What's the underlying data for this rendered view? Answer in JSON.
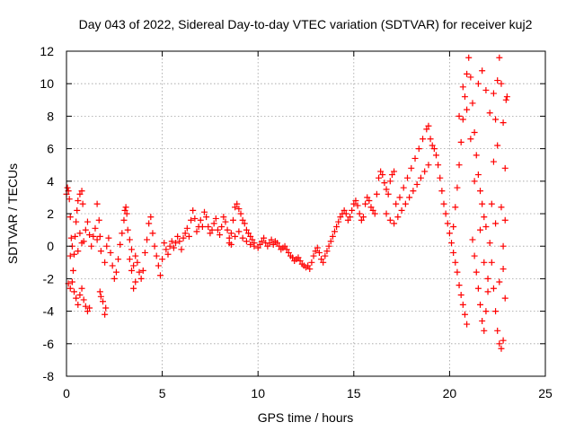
{
  "chart_data": {
    "type": "scatter",
    "title": "Day 043 of 2022, Sidereal Day-to-day VTEC variation (SDTVAR) for receiver kuj2",
    "xlabel": "GPS time / hours",
    "ylabel": "SDTVAR / TECUs",
    "xlim": [
      0,
      25
    ],
    "ylim": [
      -8,
      12
    ],
    "xticks": [
      0,
      5,
      10,
      15,
      20,
      25
    ],
    "yticks": [
      -8,
      -6,
      -4,
      -2,
      0,
      2,
      4,
      6,
      8,
      10,
      12
    ],
    "grid": true,
    "marker": "+",
    "series_color": "#ff0000",
    "series": [
      {
        "name": "SDTVAR",
        "points": [
          [
            0.0,
            3.2
          ],
          [
            0.05,
            3.6
          ],
          [
            0.1,
            3.4
          ],
          [
            0.15,
            2.9
          ],
          [
            0.2,
            1.8
          ],
          [
            0.25,
            0.5
          ],
          [
            0.1,
            -2.3
          ],
          [
            0.2,
            -2.6
          ],
          [
            0.3,
            -2.2
          ],
          [
            0.35,
            -1.5
          ],
          [
            0.4,
            -0.5
          ],
          [
            0.45,
            0.6
          ],
          [
            0.5,
            1.5
          ],
          [
            0.55,
            2.2
          ],
          [
            0.6,
            2.8
          ],
          [
            0.7,
            3.2
          ],
          [
            0.8,
            3.4
          ],
          [
            0.85,
            2.6
          ],
          [
            0.4,
            -2.8
          ],
          [
            0.5,
            -3.2
          ],
          [
            0.6,
            -3.6
          ],
          [
            0.7,
            -3.0
          ],
          [
            0.8,
            -2.6
          ],
          [
            0.9,
            -3.3
          ],
          [
            1.0,
            -3.7
          ],
          [
            1.1,
            -4.0
          ],
          [
            1.2,
            -3.8
          ],
          [
            0.9,
            0.3
          ],
          [
            1.0,
            1.0
          ],
          [
            1.1,
            1.5
          ],
          [
            1.2,
            0.7
          ],
          [
            1.3,
            0.0
          ],
          [
            1.4,
            0.6
          ],
          [
            1.5,
            1.1
          ],
          [
            1.6,
            0.4
          ],
          [
            0.6,
            -0.3
          ],
          [
            0.7,
            0.8
          ],
          [
            0.8,
            0.2
          ],
          [
            0.3,
            0.0
          ],
          [
            0.2,
            -0.6
          ],
          [
            1.6,
            2.6
          ],
          [
            1.7,
            1.6
          ],
          [
            1.75,
            0.6
          ],
          [
            1.8,
            -0.3
          ],
          [
            1.75,
            -2.8
          ],
          [
            1.8,
            -3.1
          ],
          [
            1.9,
            -3.4
          ],
          [
            2.0,
            -4.2
          ],
          [
            2.05,
            -3.8
          ],
          [
            2.0,
            -1.0
          ],
          [
            2.1,
            0.0
          ],
          [
            2.2,
            0.5
          ],
          [
            2.3,
            -0.4
          ],
          [
            2.4,
            -1.2
          ],
          [
            2.5,
            -2.0
          ],
          [
            2.6,
            -1.6
          ],
          [
            2.7,
            -0.8
          ],
          [
            2.8,
            0.1
          ],
          [
            2.9,
            0.8
          ],
          [
            3.0,
            1.6
          ],
          [
            3.05,
            2.2
          ],
          [
            3.1,
            2.4
          ],
          [
            3.15,
            2.0
          ],
          [
            3.2,
            1.0
          ],
          [
            3.3,
            -0.8
          ],
          [
            3.4,
            -1.5
          ],
          [
            3.5,
            -1.2
          ],
          [
            3.6,
            -0.6
          ],
          [
            3.7,
            -1.0
          ],
          [
            3.8,
            -1.6
          ],
          [
            3.9,
            -2.0
          ],
          [
            4.0,
            -1.5
          ],
          [
            3.3,
            0.4
          ],
          [
            3.4,
            -0.2
          ],
          [
            3.5,
            -2.6
          ],
          [
            3.6,
            -2.2
          ],
          [
            4.1,
            -0.4
          ],
          [
            4.2,
            0.4
          ],
          [
            4.3,
            1.4
          ],
          [
            4.4,
            1.8
          ],
          [
            4.5,
            0.8
          ],
          [
            4.6,
            0.0
          ],
          [
            4.7,
            -0.6
          ],
          [
            4.8,
            -1.2
          ],
          [
            4.9,
            -1.8
          ],
          [
            5.0,
            -0.8
          ],
          [
            5.1,
            0.2
          ],
          [
            5.2,
            -0.2
          ],
          [
            5.3,
            -0.5
          ],
          [
            5.4,
            0.0
          ],
          [
            5.5,
            0.3
          ],
          [
            5.6,
            -0.1
          ],
          [
            5.7,
            0.2
          ],
          [
            5.8,
            0.6
          ],
          [
            5.9,
            0.3
          ],
          [
            6.0,
            -0.2
          ],
          [
            6.1,
            0.5
          ],
          [
            6.2,
            0.8
          ],
          [
            6.3,
            1.1
          ],
          [
            6.4,
            0.6
          ],
          [
            6.5,
            1.6
          ],
          [
            6.6,
            2.2
          ],
          [
            6.7,
            1.7
          ],
          [
            6.8,
            0.9
          ],
          [
            6.9,
            1.2
          ],
          [
            7.0,
            1.6
          ],
          [
            7.1,
            1.2
          ],
          [
            7.2,
            2.1
          ],
          [
            7.3,
            1.8
          ],
          [
            7.4,
            1.2
          ],
          [
            7.5,
            0.8
          ],
          [
            7.6,
            1.0
          ],
          [
            7.7,
            1.4
          ],
          [
            7.8,
            1.7
          ],
          [
            7.9,
            1.0
          ],
          [
            8.0,
            0.7
          ],
          [
            8.1,
            1.2
          ],
          [
            8.2,
            1.8
          ],
          [
            8.3,
            1.5
          ],
          [
            8.4,
            1.0
          ],
          [
            8.5,
            0.5
          ],
          [
            8.6,
            0.8
          ],
          [
            8.7,
            1.6
          ],
          [
            8.8,
            2.4
          ],
          [
            8.9,
            2.6
          ],
          [
            9.0,
            2.3
          ],
          [
            9.1,
            2.0
          ],
          [
            9.2,
            1.6
          ],
          [
            9.3,
            1.4
          ],
          [
            9.4,
            1.0
          ],
          [
            9.5,
            0.8
          ],
          [
            9.6,
            0.6
          ],
          [
            9.7,
            0.4
          ],
          [
            9.8,
            0.2
          ],
          [
            8.5,
            0.2
          ],
          [
            8.6,
            0.1
          ],
          [
            8.8,
            0.6
          ],
          [
            9.0,
            0.9
          ],
          [
            9.2,
            0.5
          ],
          [
            9.4,
            0.3
          ],
          [
            9.6,
            0.1
          ],
          [
            9.8,
            0.0
          ],
          [
            10.0,
            -0.1
          ],
          [
            10.1,
            0.1
          ],
          [
            10.2,
            0.3
          ],
          [
            10.3,
            0.5
          ],
          [
            10.4,
            0.2
          ],
          [
            10.5,
            0.0
          ],
          [
            10.6,
            0.2
          ],
          [
            10.7,
            0.4
          ],
          [
            10.8,
            0.1
          ],
          [
            10.9,
            0.3
          ],
          [
            11.0,
            0.2
          ],
          [
            11.1,
            0.0
          ],
          [
            11.2,
            -0.2
          ],
          [
            11.3,
            -0.1
          ],
          [
            11.4,
            0.0
          ],
          [
            11.5,
            -0.2
          ],
          [
            11.6,
            -0.4
          ],
          [
            11.7,
            -0.6
          ],
          [
            11.8,
            -0.7
          ],
          [
            11.9,
            -0.9
          ],
          [
            12.0,
            -0.8
          ],
          [
            12.1,
            -0.7
          ],
          [
            12.2,
            -0.9
          ],
          [
            12.3,
            -1.1
          ],
          [
            12.4,
            -1.2
          ],
          [
            12.5,
            -1.3
          ],
          [
            12.6,
            -1.2
          ],
          [
            12.7,
            -1.4
          ],
          [
            12.8,
            -1.0
          ],
          [
            12.9,
            -0.6
          ],
          [
            13.0,
            -0.3
          ],
          [
            13.1,
            -0.1
          ],
          [
            13.2,
            -0.4
          ],
          [
            13.3,
            -0.8
          ],
          [
            13.4,
            -1.0
          ],
          [
            13.5,
            -0.6
          ],
          [
            13.6,
            -0.3
          ],
          [
            13.7,
            0.0
          ],
          [
            13.8,
            0.3
          ],
          [
            13.9,
            0.6
          ],
          [
            14.0,
            0.9
          ],
          [
            14.1,
            1.2
          ],
          [
            14.2,
            1.5
          ],
          [
            14.3,
            1.8
          ],
          [
            14.4,
            2.0
          ],
          [
            14.5,
            2.2
          ],
          [
            14.6,
            2.0
          ],
          [
            14.7,
            1.6
          ],
          [
            14.8,
            1.8
          ],
          [
            14.9,
            2.2
          ],
          [
            15.0,
            2.6
          ],
          [
            15.1,
            2.8
          ],
          [
            15.2,
            2.5
          ],
          [
            15.3,
            2.0
          ],
          [
            15.4,
            1.6
          ],
          [
            15.5,
            1.8
          ],
          [
            15.6,
            2.6
          ],
          [
            15.7,
            3.0
          ],
          [
            15.8,
            2.8
          ],
          [
            15.9,
            2.4
          ],
          [
            16.0,
            2.2
          ],
          [
            16.1,
            2.0
          ],
          [
            16.2,
            3.2
          ],
          [
            16.3,
            4.2
          ],
          [
            16.4,
            4.6
          ],
          [
            16.5,
            4.4
          ],
          [
            16.6,
            3.9
          ],
          [
            16.7,
            3.5
          ],
          [
            16.8,
            3.2
          ],
          [
            16.9,
            4.0
          ],
          [
            17.0,
            4.4
          ],
          [
            17.1,
            4.6
          ],
          [
            16.7,
            2.0
          ],
          [
            16.9,
            1.6
          ],
          [
            17.1,
            1.4
          ],
          [
            17.3,
            1.8
          ],
          [
            17.5,
            2.2
          ],
          [
            17.7,
            2.6
          ],
          [
            17.9,
            3.0
          ],
          [
            18.1,
            3.4
          ],
          [
            18.3,
            3.8
          ],
          [
            18.5,
            4.2
          ],
          [
            18.7,
            4.6
          ],
          [
            18.9,
            5.0
          ],
          [
            17.2,
            2.6
          ],
          [
            17.4,
            3.0
          ],
          [
            17.6,
            3.6
          ],
          [
            17.8,
            4.2
          ],
          [
            18.0,
            4.8
          ],
          [
            18.2,
            5.4
          ],
          [
            18.4,
            6.0
          ],
          [
            18.6,
            6.6
          ],
          [
            18.8,
            7.2
          ],
          [
            18.9,
            7.4
          ],
          [
            19.0,
            6.6
          ],
          [
            19.1,
            6.2
          ],
          [
            19.2,
            6.0
          ],
          [
            19.3,
            5.6
          ],
          [
            19.4,
            5.0
          ],
          [
            19.5,
            4.2
          ],
          [
            19.6,
            3.4
          ],
          [
            19.7,
            2.6
          ],
          [
            19.8,
            2.0
          ],
          [
            19.9,
            1.4
          ],
          [
            20.0,
            0.8
          ],
          [
            20.1,
            0.2
          ],
          [
            20.2,
            -0.4
          ],
          [
            20.3,
            -1.0
          ],
          [
            20.4,
            -1.6
          ],
          [
            20.5,
            -2.4
          ],
          [
            20.6,
            -3.0
          ],
          [
            20.7,
            -3.6
          ],
          [
            20.8,
            -4.2
          ],
          [
            20.9,
            -4.8
          ],
          [
            20.2,
            1.2
          ],
          [
            20.3,
            2.4
          ],
          [
            20.4,
            3.6
          ],
          [
            20.5,
            5.0
          ],
          [
            20.6,
            6.4
          ],
          [
            20.7,
            7.8
          ],
          [
            20.8,
            9.2
          ],
          [
            20.9,
            10.6
          ],
          [
            21.0,
            11.6
          ],
          [
            21.1,
            10.4
          ],
          [
            21.2,
            8.8
          ],
          [
            21.3,
            7.0
          ],
          [
            21.4,
            5.6
          ],
          [
            21.5,
            4.4
          ],
          [
            21.6,
            3.4
          ],
          [
            21.7,
            2.6
          ],
          [
            21.8,
            1.8
          ],
          [
            21.9,
            1.2
          ],
          [
            21.2,
            0.4
          ],
          [
            21.3,
            -0.6
          ],
          [
            21.4,
            -1.6
          ],
          [
            21.5,
            -2.6
          ],
          [
            21.6,
            -3.6
          ],
          [
            21.7,
            -4.6
          ],
          [
            21.8,
            -5.2
          ],
          [
            21.9,
            -4.0
          ],
          [
            22.0,
            -2.0
          ],
          [
            22.1,
            0.2
          ],
          [
            22.2,
            2.6
          ],
          [
            22.3,
            5.2
          ],
          [
            22.4,
            7.8
          ],
          [
            22.5,
            10.2
          ],
          [
            22.6,
            11.6
          ],
          [
            22.7,
            10.0
          ],
          [
            22.8,
            7.6
          ],
          [
            22.9,
            4.8
          ],
          [
            22.2,
            -1.0
          ],
          [
            22.3,
            -2.6
          ],
          [
            22.4,
            -4.0
          ],
          [
            22.5,
            -5.2
          ],
          [
            22.6,
            -6.0
          ],
          [
            22.7,
            -6.3
          ],
          [
            22.8,
            -5.8
          ],
          [
            22.9,
            -3.2
          ],
          [
            22.8,
            -1.4
          ],
          [
            22.9,
            1.6
          ],
          [
            22.95,
            9.0
          ],
          [
            23.0,
            9.2
          ],
          [
            21.5,
            10.0
          ],
          [
            21.7,
            10.8
          ],
          [
            21.9,
            9.6
          ],
          [
            22.1,
            8.2
          ],
          [
            22.3,
            9.4
          ],
          [
            22.5,
            6.2
          ],
          [
            20.5,
            8.0
          ],
          [
            20.7,
            9.8
          ],
          [
            20.9,
            8.4
          ],
          [
            21.1,
            6.6
          ],
          [
            21.3,
            4.0
          ],
          [
            21.6,
            1.0
          ],
          [
            21.8,
            -1.0
          ],
          [
            22.0,
            -2.8
          ],
          [
            22.4,
            1.4
          ],
          [
            22.6,
            -2.2
          ],
          [
            22.7,
            2.4
          ],
          [
            22.8,
            0.0
          ]
        ]
      }
    ]
  }
}
